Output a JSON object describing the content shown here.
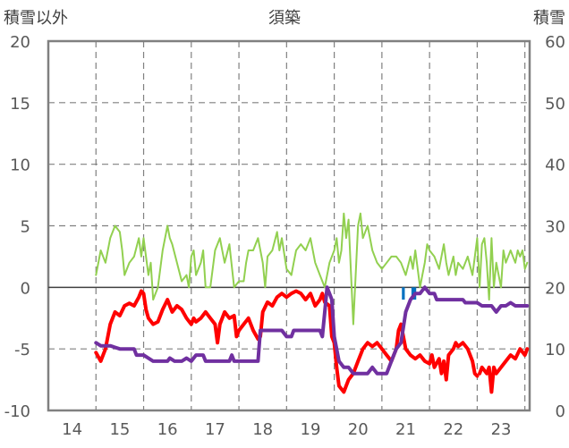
{
  "chart_data": {
    "type": "line",
    "title": "須築",
    "ylabel_left": "積雪以外",
    "ylabel_right": "積雪",
    "x_ticks": [
      "14",
      "15",
      "16",
      "17",
      "18",
      "19",
      "20",
      "21",
      "22",
      "23"
    ],
    "xlim": [
      13.5,
      23.6
    ],
    "ylim_left": [
      -10,
      20
    ],
    "ylim_right": [
      0,
      60
    ],
    "y_ticks_left": [
      "20",
      "15",
      "10",
      "5",
      "0",
      "-5",
      "-10"
    ],
    "y_ticks_right": [
      "60",
      "50",
      "40",
      "30",
      "20",
      "10",
      "0"
    ],
    "grid": "dashed",
    "colors": {
      "temperature": "#ff0000",
      "precipitation": "#92d050",
      "sunshine": "#0070c0",
      "snow_depth": "#7030a0",
      "axis": "#808080"
    },
    "series": [
      {
        "axis": "left",
        "color": "#ff0000",
        "width": 4,
        "points": [
          [
            14.5,
            -5.3
          ],
          [
            14.6,
            -6.0
          ],
          [
            14.7,
            -5.0
          ],
          [
            14.8,
            -3.0
          ],
          [
            14.9,
            -2.0
          ],
          [
            15.0,
            -2.3
          ],
          [
            15.1,
            -1.5
          ],
          [
            15.2,
            -1.3
          ],
          [
            15.3,
            -1.5
          ],
          [
            15.4,
            -0.8
          ],
          [
            15.45,
            -0.3
          ],
          [
            15.5,
            -0.5
          ],
          [
            15.55,
            -1.8
          ],
          [
            15.6,
            -2.5
          ],
          [
            15.7,
            -3.0
          ],
          [
            15.8,
            -2.8
          ],
          [
            15.9,
            -1.8
          ],
          [
            16.0,
            -1.0
          ],
          [
            16.05,
            -1.5
          ],
          [
            16.1,
            -2.0
          ],
          [
            16.2,
            -1.5
          ],
          [
            16.3,
            -1.8
          ],
          [
            16.4,
            -2.5
          ],
          [
            16.5,
            -3.0
          ],
          [
            16.55,
            -2.5
          ],
          [
            16.6,
            -2.8
          ],
          [
            16.7,
            -2.5
          ],
          [
            16.8,
            -2.0
          ],
          [
            16.9,
            -2.5
          ],
          [
            17.0,
            -3.0
          ],
          [
            17.05,
            -4.5
          ],
          [
            17.1,
            -3.0
          ],
          [
            17.2,
            -2.0
          ],
          [
            17.3,
            -2.5
          ],
          [
            17.4,
            -2.3
          ],
          [
            17.45,
            -4.0
          ],
          [
            17.5,
            -3.5
          ],
          [
            17.6,
            -3.0
          ],
          [
            17.7,
            -2.5
          ],
          [
            17.8,
            -3.5
          ],
          [
            17.9,
            -4.2
          ],
          [
            17.95,
            -4.0
          ],
          [
            18.0,
            -2.0
          ],
          [
            18.1,
            -1.2
          ],
          [
            18.2,
            -1.5
          ],
          [
            18.3,
            -0.8
          ],
          [
            18.4,
            -0.5
          ],
          [
            18.5,
            -0.8
          ],
          [
            18.6,
            -0.5
          ],
          [
            18.7,
            -0.3
          ],
          [
            18.8,
            -0.5
          ],
          [
            18.9,
            -1.0
          ],
          [
            19.0,
            -0.5
          ],
          [
            19.1,
            -1.5
          ],
          [
            19.2,
            -1.0
          ],
          [
            19.25,
            -0.5
          ],
          [
            19.3,
            -1.2
          ],
          [
            19.4,
            -1.5
          ],
          [
            19.45,
            -4.0
          ],
          [
            19.5,
            -4.5
          ],
          [
            19.55,
            -6.5
          ],
          [
            19.6,
            -8.0
          ],
          [
            19.7,
            -8.5
          ],
          [
            19.8,
            -7.5
          ],
          [
            19.9,
            -7.0
          ],
          [
            20.0,
            -6.0
          ],
          [
            20.1,
            -5.0
          ],
          [
            20.2,
            -4.5
          ],
          [
            20.3,
            -4.8
          ],
          [
            20.4,
            -4.5
          ],
          [
            20.5,
            -5.0
          ],
          [
            20.6,
            -5.5
          ],
          [
            20.7,
            -6.0
          ],
          [
            20.8,
            -5.0
          ],
          [
            20.85,
            -3.5
          ],
          [
            20.9,
            -3.0
          ],
          [
            21.0,
            -5.0
          ],
          [
            21.1,
            -5.5
          ],
          [
            21.2,
            -5.8
          ],
          [
            21.3,
            -5.5
          ],
          [
            21.4,
            -6.0
          ],
          [
            21.5,
            -6.2
          ],
          [
            21.55,
            -5.5
          ],
          [
            21.6,
            -6.5
          ],
          [
            21.7,
            -5.8
          ],
          [
            21.75,
            -7.0
          ],
          [
            21.8,
            -6.0
          ],
          [
            21.85,
            -7.5
          ],
          [
            21.9,
            -5.5
          ],
          [
            22.0,
            -5.0
          ],
          [
            22.05,
            -4.5
          ],
          [
            22.1,
            -4.8
          ],
          [
            22.2,
            -4.5
          ],
          [
            22.3,
            -5.0
          ],
          [
            22.4,
            -6.0
          ],
          [
            22.45,
            -7.0
          ],
          [
            22.5,
            -7.2
          ]
        ],
        "points2": [
          [
            22.55,
            -7.0
          ],
          [
            22.6,
            -6.5
          ],
          [
            22.7,
            -7.0
          ],
          [
            22.75,
            -6.5
          ],
          [
            22.8,
            -8.5
          ],
          [
            22.85,
            -6.5
          ],
          [
            22.9,
            -7.0
          ],
          [
            23.0,
            -6.5
          ],
          [
            23.1,
            -6.0
          ],
          [
            23.2,
            -5.5
          ],
          [
            23.3,
            -5.8
          ],
          [
            23.4,
            -5.0
          ],
          [
            23.5,
            -5.5
          ],
          [
            23.55,
            -5.0
          ]
        ]
      },
      {
        "axis": "left",
        "color": "#92d050",
        "width": 2,
        "points": [
          [
            14.5,
            1.0
          ],
          [
            14.6,
            3.0
          ],
          [
            14.7,
            2.0
          ],
          [
            14.8,
            4.0
          ],
          [
            14.9,
            5.0
          ],
          [
            15.0,
            4.5
          ],
          [
            15.05,
            3.0
          ],
          [
            15.1,
            1.0
          ],
          [
            15.2,
            2.0
          ],
          [
            15.3,
            2.5
          ],
          [
            15.4,
            4.0
          ],
          [
            15.45,
            2.5
          ],
          [
            15.5,
            4.0
          ],
          [
            15.6,
            1.0
          ],
          [
            15.65,
            2.0
          ],
          [
            15.7,
            -1.0
          ],
          [
            15.8,
            0
          ],
          [
            15.9,
            3.0
          ],
          [
            16.0,
            5.0
          ],
          [
            16.05,
            4.0
          ],
          [
            16.1,
            3.5
          ],
          [
            16.2,
            2.0
          ],
          [
            16.3,
            0.5
          ],
          [
            16.4,
            1.0
          ],
          [
            16.45,
            0
          ],
          [
            16.5,
            2.5
          ],
          [
            16.55,
            3.0
          ],
          [
            16.6,
            1.0
          ],
          [
            16.7,
            2.0
          ],
          [
            16.75,
            3.0
          ],
          [
            16.8,
            0
          ],
          [
            16.9,
            0
          ],
          [
            17.0,
            3.0
          ],
          [
            17.1,
            4.0
          ],
          [
            17.15,
            3.0
          ],
          [
            17.2,
            2.0
          ],
          [
            17.3,
            3.5
          ],
          [
            17.4,
            0
          ],
          [
            17.5,
            0.5
          ],
          [
            17.6,
            0.5
          ],
          [
            17.65,
            2.0
          ],
          [
            17.7,
            3.0
          ],
          [
            17.8,
            3.0
          ],
          [
            17.9,
            4.0
          ],
          [
            18.0,
            2.0
          ],
          [
            18.05,
            0
          ],
          [
            18.1,
            2.5
          ],
          [
            18.2,
            3.0
          ],
          [
            18.3,
            4.5
          ],
          [
            18.35,
            3.0
          ],
          [
            18.4,
            4.0
          ],
          [
            18.5,
            1.5
          ],
          [
            18.6,
            1.0
          ],
          [
            18.65,
            2.0
          ],
          [
            18.7,
            3.0
          ],
          [
            18.8,
            3.5
          ],
          [
            18.9,
            3.0
          ],
          [
            19.0,
            4.0
          ],
          [
            19.1,
            2.0
          ],
          [
            19.2,
            1.0
          ],
          [
            19.3,
            0
          ],
          [
            19.4,
            2.0
          ],
          [
            19.5,
            3.0
          ],
          [
            19.55,
            4.0
          ],
          [
            19.6,
            2.0
          ],
          [
            19.65,
            3.0
          ],
          [
            19.7,
            6.0
          ],
          [
            19.75,
            4.0
          ],
          [
            19.8,
            5.5
          ],
          [
            19.9,
            -3.0
          ],
          [
            20.0,
            5.0
          ],
          [
            20.05,
            6.0
          ],
          [
            20.1,
            4.0
          ],
          [
            20.2,
            5.0
          ],
          [
            20.3,
            3.0
          ],
          [
            20.4,
            2.0
          ],
          [
            20.5,
            1.5
          ],
          [
            20.6,
            2.0
          ],
          [
            20.7,
            2.5
          ],
          [
            20.8,
            2.5
          ],
          [
            20.9,
            2.0
          ],
          [
            21.0,
            1.0
          ],
          [
            21.1,
            2.5
          ],
          [
            21.15,
            1.5
          ],
          [
            21.2,
            3.0
          ],
          [
            21.3,
            0
          ],
          [
            21.35,
            1.0
          ],
          [
            21.4,
            2.0
          ],
          [
            21.45,
            3.5
          ],
          [
            21.5,
            3.0
          ],
          [
            21.6,
            2.5
          ],
          [
            21.7,
            1.5
          ],
          [
            21.8,
            3.5
          ],
          [
            21.85,
            2.0
          ],
          [
            21.9,
            1.0
          ],
          [
            22.0,
            2.5
          ],
          [
            22.05,
            1.0
          ],
          [
            22.1,
            2.0
          ],
          [
            22.2,
            1.5
          ],
          [
            22.3,
            2.5
          ],
          [
            22.4,
            1.0
          ],
          [
            22.5,
            4.0
          ],
          [
            22.55,
            0
          ],
          [
            22.6,
            3.5
          ],
          [
            22.65,
            4.0
          ],
          [
            22.7,
            2.0
          ],
          [
            22.75,
            -1.0
          ],
          [
            22.8,
            4.0
          ],
          [
            22.85,
            0
          ],
          [
            22.9,
            2.0
          ],
          [
            23.0,
            0
          ],
          [
            23.05,
            3.0
          ],
          [
            23.1,
            2.0
          ],
          [
            23.2,
            3.0
          ],
          [
            23.3,
            2.0
          ],
          [
            23.35,
            3.0
          ],
          [
            23.4,
            2.5
          ],
          [
            23.45,
            3.0
          ],
          [
            23.5,
            1.5
          ],
          [
            23.55,
            2.0
          ]
        ]
      },
      {
        "axis": "right",
        "color": "#7030a0",
        "width": 4,
        "points": [
          [
            14.5,
            11
          ],
          [
            14.6,
            10.5
          ],
          [
            14.7,
            10.5
          ],
          [
            14.8,
            10.5
          ],
          [
            15.0,
            10
          ],
          [
            15.2,
            10
          ],
          [
            15.3,
            10
          ],
          [
            15.35,
            9
          ],
          [
            15.5,
            9
          ],
          [
            15.7,
            8
          ],
          [
            16.0,
            8
          ],
          [
            16.05,
            8.5
          ],
          [
            16.15,
            8
          ],
          [
            16.3,
            8
          ],
          [
            16.4,
            8.5
          ],
          [
            16.5,
            8
          ],
          [
            16.6,
            9
          ],
          [
            16.75,
            9
          ],
          [
            16.8,
            8
          ],
          [
            17.0,
            8
          ],
          [
            17.2,
            8
          ],
          [
            17.3,
            8
          ],
          [
            17.35,
            9
          ],
          [
            17.4,
            8
          ],
          [
            17.5,
            8
          ],
          [
            17.55,
            8
          ],
          [
            17.9,
            8
          ],
          [
            17.95,
            13
          ],
          [
            18.0,
            13
          ],
          [
            18.05,
            13
          ],
          [
            18.4,
            13
          ],
          [
            18.45,
            12.5
          ],
          [
            18.5,
            12
          ],
          [
            18.6,
            12
          ],
          [
            18.65,
            13
          ],
          [
            18.8,
            13
          ],
          [
            19.0,
            13
          ],
          [
            19.2,
            13
          ],
          [
            19.25,
            12
          ],
          [
            19.3,
            16
          ],
          [
            19.35,
            20
          ],
          [
            19.4,
            19
          ],
          [
            19.45,
            18
          ],
          [
            19.5,
            12
          ],
          [
            19.6,
            8
          ],
          [
            19.7,
            7
          ],
          [
            19.8,
            7
          ],
          [
            19.9,
            6
          ],
          [
            20.0,
            6
          ],
          [
            20.2,
            6
          ],
          [
            20.3,
            7
          ],
          [
            20.4,
            6
          ],
          [
            20.6,
            6
          ],
          [
            20.7,
            8
          ],
          [
            20.8,
            10
          ],
          [
            20.9,
            11
          ],
          [
            21.0,
            16
          ],
          [
            21.1,
            18
          ],
          [
            21.2,
            19
          ],
          [
            21.3,
            19
          ],
          [
            21.4,
            20
          ],
          [
            21.5,
            19
          ],
          [
            21.6,
            19
          ],
          [
            21.65,
            18
          ],
          [
            22.0,
            18
          ],
          [
            22.2,
            18
          ],
          [
            22.25,
            17.5
          ],
          [
            22.5,
            17.5
          ],
          [
            22.6,
            17
          ],
          [
            22.8,
            17
          ],
          [
            22.9,
            16
          ],
          [
            23.0,
            17
          ],
          [
            23.1,
            17
          ],
          [
            23.2,
            17.5
          ],
          [
            23.3,
            17
          ],
          [
            23.55,
            17
          ]
        ]
      }
    ],
    "sunshine_bars": [
      {
        "x": 20.92,
        "w": 0.06,
        "y0": 0,
        "y1": -1.0
      },
      {
        "x": 21.12,
        "w": 0.1,
        "y0": 0,
        "y1": -1.0
      }
    ]
  }
}
